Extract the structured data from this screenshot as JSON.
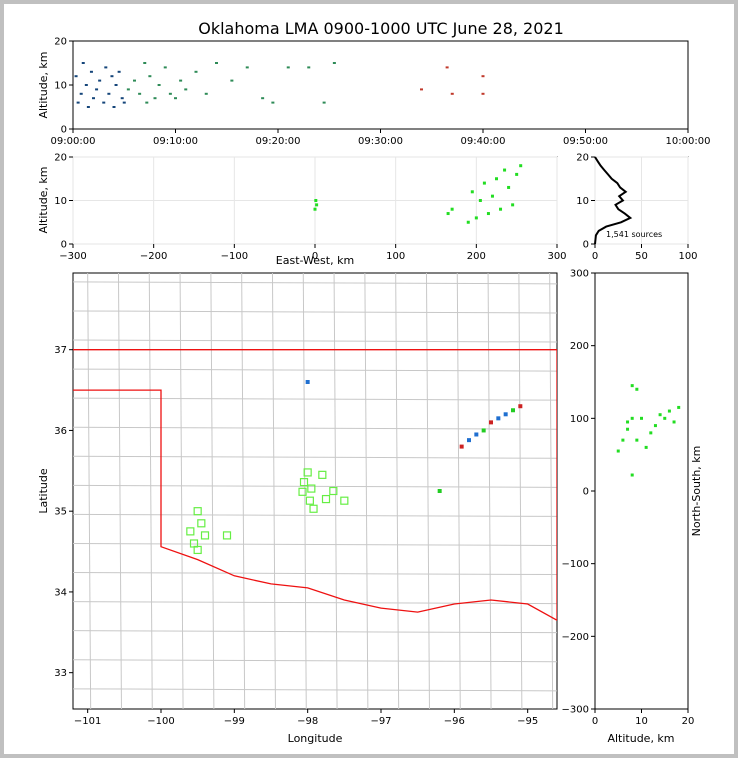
{
  "chart_data": [
    {
      "panel": "time-altitude",
      "type": "scatter",
      "title": "Oklahoma LMA 0900-1000 UTC June 28, 2021",
      "xlabel": "",
      "ylabel": "Altitude, km",
      "xticks": [
        "09:00:00",
        "09:10:00",
        "09:20:00",
        "09:30:00",
        "09:40:00",
        "09:50:00",
        "10:00:00"
      ],
      "yticks": [
        "0",
        "10",
        "20"
      ],
      "xlim_minutes": [
        0,
        60
      ],
      "ylim": [
        0,
        20
      ],
      "grid": false,
      "colors": {
        "early": "#15457a",
        "mid": "#2e8b57",
        "late": "#c0392b"
      },
      "points": [
        {
          "minute": 0.3,
          "alt": 12
        },
        {
          "minute": 0.5,
          "alt": 6
        },
        {
          "minute": 0.8,
          "alt": 8
        },
        {
          "minute": 1.0,
          "alt": 15
        },
        {
          "minute": 1.3,
          "alt": 10
        },
        {
          "minute": 1.5,
          "alt": 5
        },
        {
          "minute": 1.8,
          "alt": 13
        },
        {
          "minute": 2.0,
          "alt": 7
        },
        {
          "minute": 2.3,
          "alt": 9
        },
        {
          "minute": 2.6,
          "alt": 11
        },
        {
          "minute": 3.0,
          "alt": 6
        },
        {
          "minute": 3.2,
          "alt": 14
        },
        {
          "minute": 3.5,
          "alt": 8
        },
        {
          "minute": 3.8,
          "alt": 12
        },
        {
          "minute": 4.0,
          "alt": 5
        },
        {
          "minute": 4.2,
          "alt": 10
        },
        {
          "minute": 4.5,
          "alt": 13
        },
        {
          "minute": 4.8,
          "alt": 7
        },
        {
          "minute": 5.0,
          "alt": 6
        },
        {
          "minute": 5.4,
          "alt": 9
        },
        {
          "minute": 6.0,
          "alt": 11
        },
        {
          "minute": 6.5,
          "alt": 8
        },
        {
          "minute": 7.0,
          "alt": 15
        },
        {
          "minute": 7.2,
          "alt": 6
        },
        {
          "minute": 7.5,
          "alt": 12
        },
        {
          "minute": 8.0,
          "alt": 7
        },
        {
          "minute": 8.4,
          "alt": 10
        },
        {
          "minute": 9.0,
          "alt": 14
        },
        {
          "minute": 9.5,
          "alt": 8
        },
        {
          "minute": 10.0,
          "alt": 7
        },
        {
          "minute": 10.5,
          "alt": 11
        },
        {
          "minute": 11.0,
          "alt": 9
        },
        {
          "minute": 12.0,
          "alt": 13
        },
        {
          "minute": 13.0,
          "alt": 8
        },
        {
          "minute": 14.0,
          "alt": 15
        },
        {
          "minute": 15.5,
          "alt": 11
        },
        {
          "minute": 17.0,
          "alt": 14
        },
        {
          "minute": 18.5,
          "alt": 7
        },
        {
          "minute": 19.5,
          "alt": 6
        },
        {
          "minute": 21.0,
          "alt": 14
        },
        {
          "minute": 23.0,
          "alt": 14
        },
        {
          "minute": 24.5,
          "alt": 6
        },
        {
          "minute": 25.5,
          "alt": 15
        },
        {
          "minute": 34.0,
          "alt": 9
        },
        {
          "minute": 36.5,
          "alt": 14
        },
        {
          "minute": 37.0,
          "alt": 8
        },
        {
          "minute": 40.0,
          "alt": 8
        },
        {
          "minute": 40.0,
          "alt": 12
        }
      ]
    },
    {
      "panel": "east-west-altitude",
      "type": "scatter",
      "title": "",
      "xlabel": "East-West, km",
      "ylabel": "Altitude, km",
      "xticks": [
        "−300",
        "−200",
        "−100",
        "0",
        "100",
        "200",
        "300"
      ],
      "yticks": [
        "0",
        "10",
        "20"
      ],
      "xlim": [
        -300,
        300
      ],
      "ylim": [
        0,
        20
      ],
      "grid": true,
      "color": "#22dd22",
      "points": [
        {
          "x": 0,
          "alt": 8
        },
        {
          "x": 1,
          "alt": 10
        },
        {
          "x": 2,
          "alt": 9
        },
        {
          "x": 165,
          "alt": 7
        },
        {
          "x": 170,
          "alt": 8
        },
        {
          "x": 190,
          "alt": 5
        },
        {
          "x": 195,
          "alt": 12
        },
        {
          "x": 200,
          "alt": 6
        },
        {
          "x": 205,
          "alt": 10
        },
        {
          "x": 210,
          "alt": 14
        },
        {
          "x": 215,
          "alt": 7
        },
        {
          "x": 220,
          "alt": 11
        },
        {
          "x": 225,
          "alt": 15
        },
        {
          "x": 230,
          "alt": 8
        },
        {
          "x": 235,
          "alt": 17
        },
        {
          "x": 240,
          "alt": 13
        },
        {
          "x": 245,
          "alt": 9
        },
        {
          "x": 250,
          "alt": 16
        },
        {
          "x": 255,
          "alt": 18
        }
      ]
    },
    {
      "panel": "altitude-histogram",
      "type": "line",
      "title": "",
      "xlabel": "",
      "ylabel": "",
      "xticks": [
        "0",
        "50",
        "100"
      ],
      "yticks": [
        "0",
        "10",
        "20"
      ],
      "xlim": [
        0,
        100
      ],
      "ylim": [
        0,
        20
      ],
      "grid": true,
      "annotation": "1,541 sources",
      "profile": [
        {
          "alt": 0,
          "count": 0
        },
        {
          "alt": 2,
          "count": 1
        },
        {
          "alt": 3,
          "count": 4
        },
        {
          "alt": 4,
          "count": 12
        },
        {
          "alt": 5,
          "count": 28
        },
        {
          "alt": 6,
          "count": 38
        },
        {
          "alt": 7,
          "count": 32
        },
        {
          "alt": 8,
          "count": 25
        },
        {
          "alt": 9,
          "count": 22
        },
        {
          "alt": 10,
          "count": 30
        },
        {
          "alt": 11,
          "count": 26
        },
        {
          "alt": 12,
          "count": 33
        },
        {
          "alt": 13,
          "count": 27
        },
        {
          "alt": 14,
          "count": 24
        },
        {
          "alt": 15,
          "count": 18
        },
        {
          "alt": 16,
          "count": 14
        },
        {
          "alt": 17,
          "count": 10
        },
        {
          "alt": 18,
          "count": 6
        },
        {
          "alt": 19,
          "count": 3
        },
        {
          "alt": 20,
          "count": 0
        }
      ]
    },
    {
      "panel": "plan-view-map",
      "type": "scatter",
      "title": "",
      "xlabel": "Longitude",
      "ylabel": "Latitude",
      "xticks": [
        "−101",
        "−100",
        "−99",
        "−98",
        "−97",
        "−96",
        "−95"
      ],
      "yticks": [
        "33",
        "34",
        "35",
        "36",
        "37"
      ],
      "xlim": [
        -101.2,
        -94.6
      ],
      "ylim": [
        32.55,
        37.95
      ],
      "border_color": "#ee1111",
      "county_color": "#c8c8c8",
      "station_color": "#66ee44",
      "stations": [
        {
          "lon": -99.5,
          "lat": 35.0
        },
        {
          "lon": -99.6,
          "lat": 34.75
        },
        {
          "lon": -99.45,
          "lat": 34.85
        },
        {
          "lon": -99.4,
          "lat": 34.7
        },
        {
          "lon": -99.55,
          "lat": 34.6
        },
        {
          "lon": -99.5,
          "lat": 34.52
        },
        {
          "lon": -99.1,
          "lat": 34.7
        },
        {
          "lon": -98.0,
          "lat": 35.48
        },
        {
          "lon": -98.05,
          "lat": 35.36
        },
        {
          "lon": -98.07,
          "lat": 35.24
        },
        {
          "lon": -97.95,
          "lat": 35.28
        },
        {
          "lon": -97.97,
          "lat": 35.13
        },
        {
          "lon": -97.92,
          "lat": 35.03
        },
        {
          "lon": -97.8,
          "lat": 35.45
        },
        {
          "lon": -97.75,
          "lat": 35.15
        },
        {
          "lon": -97.65,
          "lat": 35.25
        },
        {
          "lon": -97.5,
          "lat": 35.13
        }
      ],
      "sources": [
        {
          "lon": -98.0,
          "lat": 36.6
        },
        {
          "lon": -96.2,
          "lat": 35.25
        },
        {
          "lon": -95.9,
          "lat": 35.8
        },
        {
          "lon": -95.8,
          "lat": 35.88
        },
        {
          "lon": -95.7,
          "lat": 35.95
        },
        {
          "lon": -95.6,
          "lat": 36.0
        },
        {
          "lon": -95.5,
          "lat": 36.1
        },
        {
          "lon": -95.4,
          "lat": 36.15
        },
        {
          "lon": -95.3,
          "lat": 36.2
        },
        {
          "lon": -95.2,
          "lat": 36.25
        },
        {
          "lon": -95.1,
          "lat": 36.3
        }
      ]
    },
    {
      "panel": "altitude-north-south",
      "type": "scatter",
      "title": "",
      "xlabel": "Altitude, km",
      "ylabel": "North-South, km",
      "xticks": [
        "0",
        "10",
        "20"
      ],
      "yticks": [
        "−300",
        "−200",
        "−100",
        "0",
        "100",
        "200",
        "300"
      ],
      "xlim": [
        0,
        20
      ],
      "ylim": [
        -300,
        300
      ],
      "grid": false,
      "color": "#22dd22",
      "points": [
        {
          "alt": 5,
          "y": 55
        },
        {
          "alt": 6,
          "y": 70
        },
        {
          "alt": 7,
          "y": 85
        },
        {
          "alt": 8,
          "y": 100
        },
        {
          "alt": 7,
          "y": 95
        },
        {
          "alt": 8,
          "y": 145
        },
        {
          "alt": 9,
          "y": 140
        },
        {
          "alt": 11,
          "y": 60
        },
        {
          "alt": 12,
          "y": 80
        },
        {
          "alt": 13,
          "y": 90
        },
        {
          "alt": 14,
          "y": 105
        },
        {
          "alt": 15,
          "y": 100
        },
        {
          "alt": 16,
          "y": 110
        },
        {
          "alt": 17,
          "y": 95
        },
        {
          "alt": 18,
          "y": 115
        },
        {
          "alt": 10,
          "y": 100
        },
        {
          "alt": 9,
          "y": 70
        },
        {
          "alt": 8,
          "y": 22
        }
      ]
    }
  ]
}
